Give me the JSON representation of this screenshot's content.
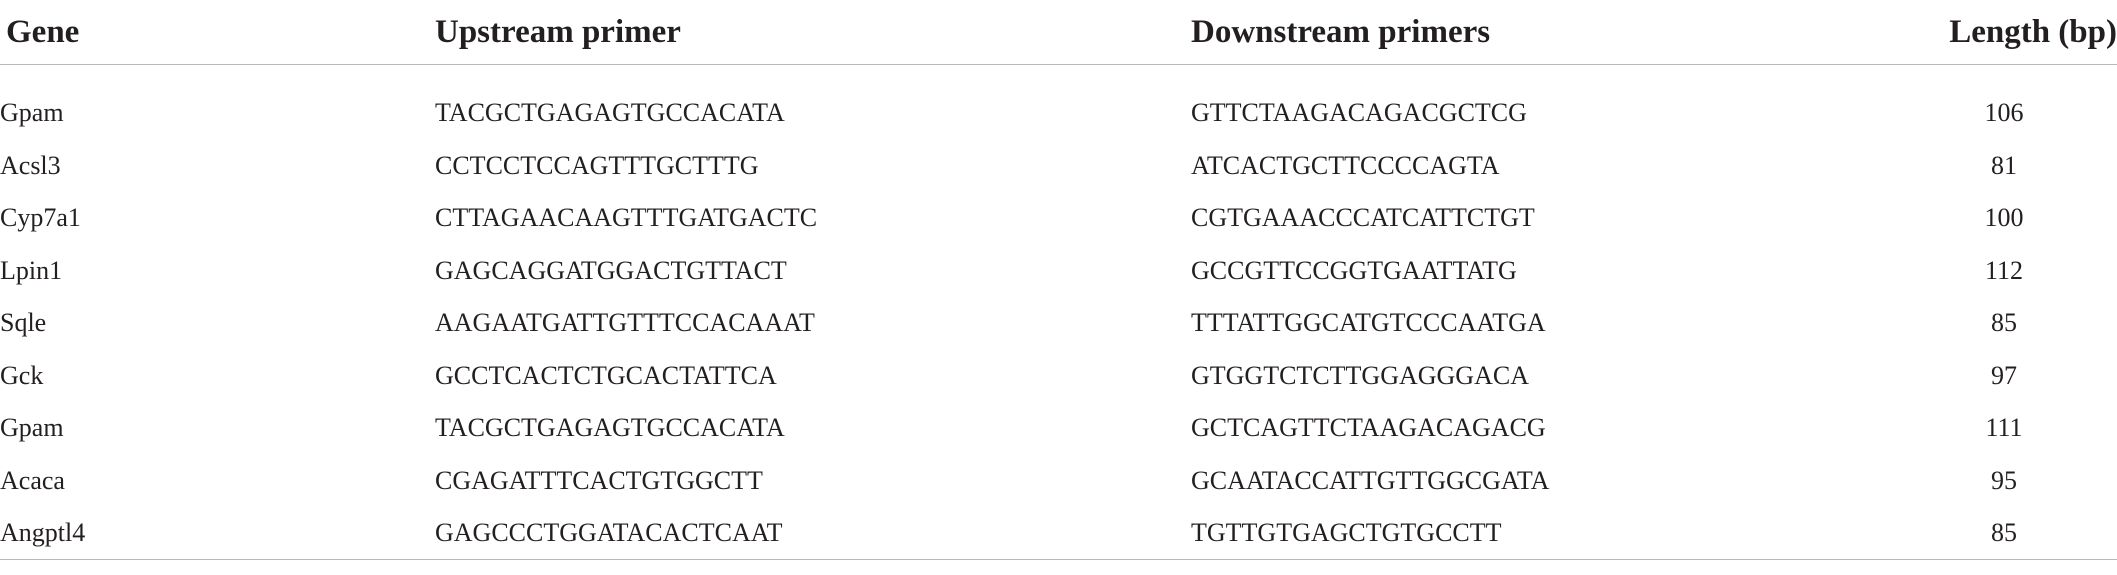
{
  "table": {
    "headers": {
      "gene": "Gene",
      "upstream": "Upstream primer",
      "downstream": "Downstream primers",
      "length": "Length (bp)"
    },
    "rows": [
      {
        "gene": "Gpam",
        "upstream": "TACGCTGAGAGTGCCACATA",
        "downstream": "GTTCTAAGACAGACGCTCG",
        "length": "106"
      },
      {
        "gene": "Acsl3",
        "upstream": "CCTCCTCCAGTTTGCTTTG",
        "downstream": "ATCACTGCTTCCCCAGTA",
        "length": "81"
      },
      {
        "gene": "Cyp7a1",
        "upstream": "CTTAGAACAAGTTTGATGACTC",
        "downstream": "CGTGAAACCCATCATTCTGT",
        "length": "100"
      },
      {
        "gene": "Lpin1",
        "upstream": "GAGCAGGATGGACTGTTACT",
        "downstream": "GCCGTTCCGGTGAATTATG",
        "length": "112"
      },
      {
        "gene": "Sqle",
        "upstream": "AAGAATGATTGTTTCCACAAAT",
        "downstream": "TTTATTGGCATGTCCCAATGA",
        "length": "85"
      },
      {
        "gene": "Gck",
        "upstream": "GCCTCACTCTGCACTATTCA",
        "downstream": "GTGGTCTCTTGGAGGGACA",
        "length": "97"
      },
      {
        "gene": "Gpam",
        "upstream": "TACGCTGAGAGTGCCACATA",
        "downstream": "GCTCAGTTCTAAGACAGACG",
        "length": "111"
      },
      {
        "gene": "Acaca",
        "upstream": "CGAGATTTCACTGTGGCTT",
        "downstream": "GCAATACCATTGTTGGCGATA",
        "length": "95"
      },
      {
        "gene": "Angptl4",
        "upstream": "GAGCCCTGGATACACTCAAT",
        "downstream": "TGTTGTGAGCTGTGCCTT",
        "length": "85"
      }
    ]
  }
}
